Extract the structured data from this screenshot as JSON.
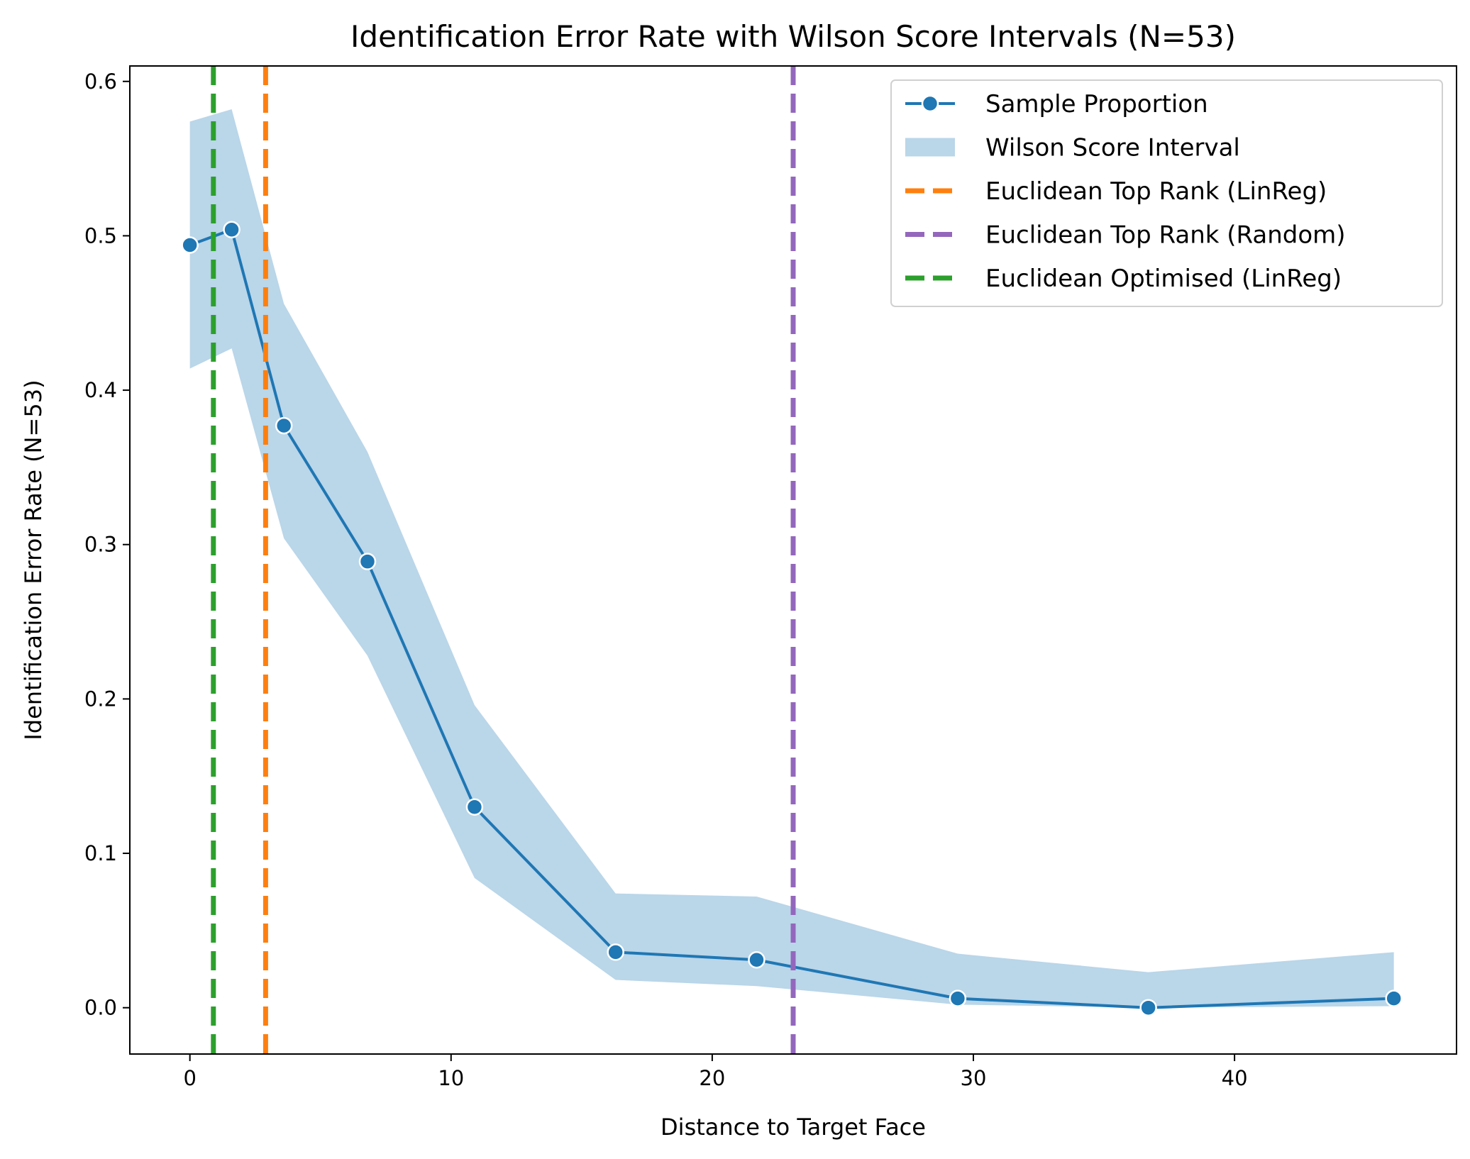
{
  "chart_data": {
    "type": "line",
    "title": "Identification Error Rate with Wilson Score Intervals (N=53)",
    "xlabel": "Distance to Target Face",
    "ylabel": "Identification Error Rate (N=53)",
    "xlim": [
      -2.3,
      48.5
    ],
    "ylim": [
      -0.03,
      0.61
    ],
    "x_ticks": [
      0,
      10,
      20,
      30,
      40
    ],
    "y_ticks": [
      0.0,
      0.1,
      0.2,
      0.3,
      0.4,
      0.5,
      0.6
    ],
    "y_tick_labels": [
      "0.0",
      "0.1",
      "0.2",
      "0.3",
      "0.4",
      "0.5",
      "0.6"
    ],
    "grid": false,
    "legend_position": "upper right",
    "series": [
      {
        "name": "Sample Proportion",
        "kind": "line-markers",
        "color": "#1f77b4",
        "x": [
          0,
          1.6,
          3.6,
          6.8,
          10.9,
          16.3,
          21.7,
          29.4,
          36.7,
          46.1
        ],
        "y": [
          0.494,
          0.504,
          0.377,
          0.289,
          0.13,
          0.036,
          0.031,
          0.006,
          0.0,
          0.006
        ]
      },
      {
        "name": "Wilson Score Interval",
        "kind": "band",
        "color": "#bad6e9",
        "x": [
          0,
          1.6,
          3.6,
          6.8,
          10.9,
          16.3,
          21.7,
          29.4,
          36.7,
          46.1
        ],
        "lower": [
          0.414,
          0.427,
          0.304,
          0.228,
          0.084,
          0.018,
          0.014,
          0.002,
          0.0,
          0.001
        ],
        "upper": [
          0.574,
          0.582,
          0.456,
          0.36,
          0.196,
          0.074,
          0.072,
          0.035,
          0.023,
          0.036
        ]
      }
    ],
    "reference_lines": [
      {
        "name": "Euclidean Top Rank (LinReg)",
        "x": 2.9,
        "color": "#ff7f0e",
        "style": "dashed"
      },
      {
        "name": "Euclidean Top Rank (Random)",
        "x": 23.1,
        "color": "#9467bd",
        "style": "dashed"
      },
      {
        "name": "Euclidean Optimised (LinReg)",
        "x": 0.9,
        "color": "#2ca02c",
        "style": "dashed"
      }
    ],
    "legend": [
      {
        "label": "Sample Proportion",
        "kind": "line-marker",
        "color": "#1f77b4"
      },
      {
        "label": "Wilson Score Interval",
        "kind": "patch",
        "color": "#bad6e9"
      },
      {
        "label": "Euclidean Top Rank (LinReg)",
        "kind": "dashed",
        "color": "#ff7f0e"
      },
      {
        "label": "Euclidean Top Rank (Random)",
        "kind": "dashed",
        "color": "#9467bd"
      },
      {
        "label": "Euclidean Optimised (LinReg)",
        "kind": "dashed",
        "color": "#2ca02c"
      }
    ]
  }
}
